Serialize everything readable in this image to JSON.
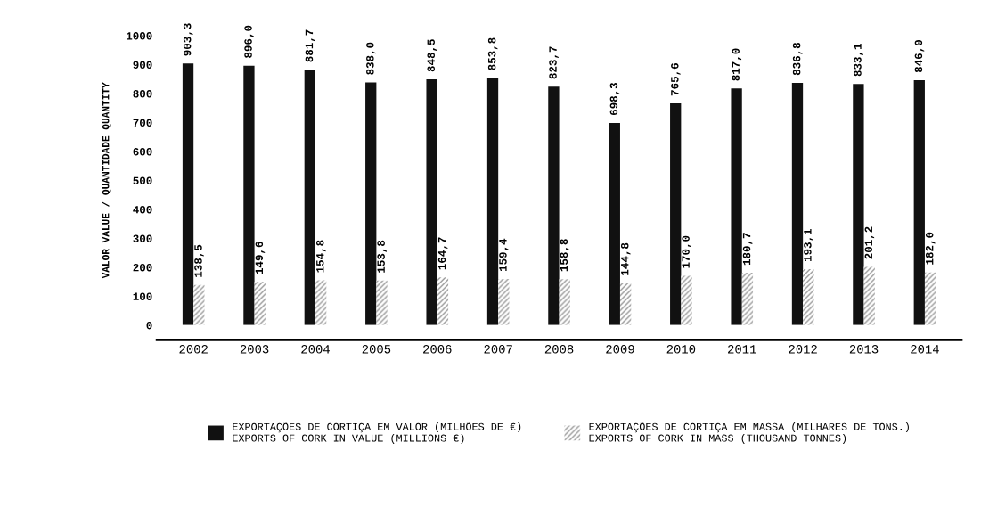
{
  "chart_data": {
    "type": "bar",
    "ylabel": "VALOR VALUE / QUANTIDADE QUANTITY",
    "categories": [
      "2002",
      "2003",
      "2004",
      "2005",
      "2006",
      "2007",
      "2008",
      "2009",
      "2010",
      "2011",
      "2012",
      "2013",
      "2014"
    ],
    "series": [
      {
        "name": "EXPORTAÇÕES DE CORTIÇA EM VALOR (MILHÕES DE €)\nEXPORTS OF CORK IN VALUE (MILLIONS €)",
        "color": "#111111",
        "values": [
          903.3,
          896.0,
          881.7,
          838.0,
          848.5,
          853.8,
          823.7,
          698.3,
          765.6,
          817.0,
          836.8,
          833.1,
          846.0
        ],
        "value_labels": [
          "903,3",
          "896,0",
          "881,7",
          "838,0",
          "848,5",
          "853,8",
          "823,7",
          "698,3",
          "765,6",
          "817,0",
          "836,8",
          "833,1",
          "846,0"
        ]
      },
      {
        "name": "EXPORTAÇÕES DE CORTIÇA EM MASSA (MILHARES DE TONS.)\nEXPORTS OF CORK IN MASS (THOUSAND TONNES)",
        "color": "#999999",
        "values": [
          138.5,
          149.6,
          154.8,
          153.8,
          164.7,
          159.4,
          158.8,
          144.8,
          170.0,
          180.7,
          193.1,
          201.2,
          182.0
        ],
        "value_labels": [
          "138,5",
          "149,6",
          "154,8",
          "153,8",
          "164,7",
          "159,4",
          "158,8",
          "144,8",
          "170,0",
          "180,7",
          "193,1",
          "201,2",
          "182,0"
        ]
      }
    ],
    "ylim": [
      0,
      1000
    ],
    "yticks": [
      0,
      100,
      200,
      300,
      400,
      500,
      600,
      700,
      800,
      900,
      1000
    ],
    "grid": false,
    "legend": "bottom"
  }
}
